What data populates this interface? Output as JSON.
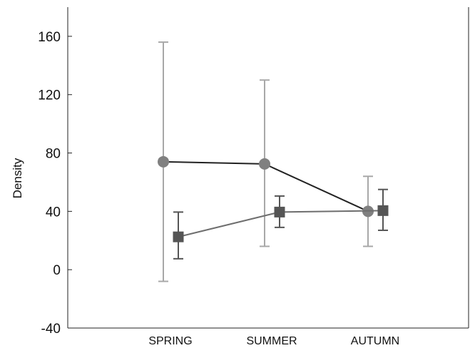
{
  "chart_data": {
    "type": "line",
    "xlabel": "",
    "ylabel": "Density",
    "ylim": [
      -40,
      180
    ],
    "yticks": [
      -40,
      0,
      40,
      80,
      120,
      160
    ],
    "categories": [
      "SPRING",
      "SUMMER",
      "AUTUMN"
    ],
    "grid": false,
    "legend": "none",
    "series": [
      {
        "marker": "circle",
        "line_color": "#222222",
        "marker_color": "#808080",
        "errorbar_color": "#a8a8a8",
        "values": [
          74,
          72.5,
          40
        ],
        "lower": [
          -8,
          16,
          16
        ],
        "upper": [
          156,
          130,
          64
        ]
      },
      {
        "marker": "square",
        "line_color": "#6e6e6e",
        "marker_color": "#555555",
        "errorbar_color": "#555555",
        "values": [
          22.5,
          39.5,
          40.5
        ],
        "lower": [
          7.5,
          29,
          27
        ],
        "upper": [
          39.5,
          50.5,
          55
        ]
      }
    ]
  }
}
